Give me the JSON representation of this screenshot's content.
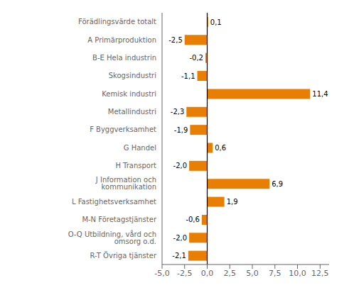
{
  "chart_data": {
    "type": "bar",
    "orientation": "horizontal",
    "categories": [
      "R-T Övriga tjänster",
      "O-Q Utbildning, vård och omsorg o.d.",
      "M-N Företagstjänster",
      "L Fastighetsverksamhet",
      "J Information och kommunikation",
      "H Transport",
      "G Handel",
      "F Byggverksamhet",
      "Metallindustri",
      "Kemisk industri",
      "Skogsindustri",
      "B-E Hela industrin",
      "A Primärproduktion",
      "Förädlingsvärde totalt"
    ],
    "values": [
      -2.1,
      -2.0,
      -0.6,
      1.9,
      6.9,
      -2.0,
      0.6,
      -1.9,
      -2.3,
      11.4,
      -1.1,
      -0.2,
      -2.5,
      0.1
    ],
    "value_labels": [
      "-2,1",
      "-2,0",
      "-0,6",
      "1,9",
      "6,9",
      "-2,0",
      "0,6",
      "-1,9",
      "-2,3",
      "11,4",
      "-1,1",
      "-0,2",
      "-2,5",
      "0,1"
    ],
    "data_labels": true,
    "color": "#E87E04",
    "xlim": [
      -5.0,
      13.5
    ],
    "xticks": [
      {
        "value": -5.0,
        "label": "-5,0"
      },
      {
        "value": -2.5,
        "label": "-2,5"
      },
      {
        "value": 0.0,
        "label": "0,0"
      },
      {
        "value": 2.5,
        "label": "2,5"
      },
      {
        "value": 5.0,
        "label": "5,0"
      },
      {
        "value": 7.5,
        "label": "7,5"
      },
      {
        "value": 10.0,
        "label": "10,0"
      },
      {
        "value": 12.5,
        "label": "12,5"
      }
    ],
    "grid": false
  }
}
